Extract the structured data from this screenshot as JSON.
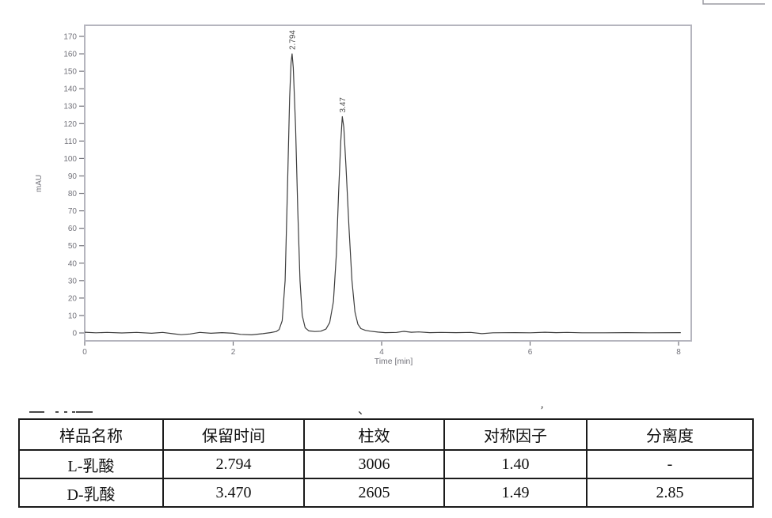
{
  "chart_data": {
    "type": "line",
    "title": "",
    "xlabel": "Time [min]",
    "ylabel": "mAU",
    "xlim": [
      0,
      8.17
    ],
    "ylim": [
      -4.5,
      176
    ],
    "x_ticks": [
      0,
      2,
      4,
      6,
      8
    ],
    "y_ticks": [
      0,
      10,
      20,
      30,
      40,
      50,
      60,
      70,
      80,
      90,
      100,
      110,
      120,
      130,
      140,
      150,
      160,
      170
    ],
    "grid": false,
    "legend": "none",
    "line_color": "#3d3d3d",
    "axis_color": "#b5b5be",
    "tick_color": "#72727a",
    "peaks": [
      {
        "label": "2.794",
        "time_min": 2.794,
        "height_mau": 160
      },
      {
        "label": "3.47",
        "time_min": 3.47,
        "height_mau": 124
      }
    ],
    "points": [
      [
        0,
        0.4
      ],
      [
        0.15,
        0.1
      ],
      [
        0.3,
        0.3
      ],
      [
        0.5,
        0
      ],
      [
        0.7,
        0.3
      ],
      [
        0.9,
        -0.2
      ],
      [
        1.05,
        0.3
      ],
      [
        1.2,
        -0.5
      ],
      [
        1.3,
        -1
      ],
      [
        1.42,
        -0.6
      ],
      [
        1.55,
        0.3
      ],
      [
        1.7,
        -0.2
      ],
      [
        1.85,
        0.2
      ],
      [
        2.0,
        -0.2
      ],
      [
        2.1,
        -0.8
      ],
      [
        2.25,
        -1.1
      ],
      [
        2.4,
        -0.4
      ],
      [
        2.5,
        0.2
      ],
      [
        2.58,
        0.8
      ],
      [
        2.62,
        2
      ],
      [
        2.66,
        7
      ],
      [
        2.7,
        30
      ],
      [
        2.73,
        80
      ],
      [
        2.76,
        135
      ],
      [
        2.78,
        155
      ],
      [
        2.794,
        160
      ],
      [
        2.81,
        152
      ],
      [
        2.84,
        118
      ],
      [
        2.87,
        70
      ],
      [
        2.9,
        30
      ],
      [
        2.93,
        10
      ],
      [
        2.97,
        3
      ],
      [
        3.02,
        1.2
      ],
      [
        3.1,
        0.8
      ],
      [
        3.18,
        1
      ],
      [
        3.25,
        2.2
      ],
      [
        3.3,
        6
      ],
      [
        3.35,
        18
      ],
      [
        3.39,
        45
      ],
      [
        3.42,
        80
      ],
      [
        3.45,
        110
      ],
      [
        3.47,
        124
      ],
      [
        3.49,
        118
      ],
      [
        3.52,
        95
      ],
      [
        3.56,
        60
      ],
      [
        3.6,
        30
      ],
      [
        3.64,
        12
      ],
      [
        3.68,
        5
      ],
      [
        3.72,
        2.5
      ],
      [
        3.78,
        1.5
      ],
      [
        3.85,
        1
      ],
      [
        3.95,
        0.5
      ],
      [
        4.05,
        0.2
      ],
      [
        4.2,
        0.3
      ],
      [
        4.3,
        0.9
      ],
      [
        4.4,
        0.4
      ],
      [
        4.5,
        0.6
      ],
      [
        4.65,
        0.2
      ],
      [
        4.8,
        0.3
      ],
      [
        5.0,
        0.2
      ],
      [
        5.2,
        0.3
      ],
      [
        5.35,
        -0.4
      ],
      [
        5.5,
        0.1
      ],
      [
        5.8,
        0.2
      ],
      [
        6.0,
        0.1
      ],
      [
        6.2,
        0.4
      ],
      [
        6.35,
        0.2
      ],
      [
        6.5,
        0.3
      ],
      [
        6.7,
        0.1
      ],
      [
        7.0,
        0.1
      ],
      [
        7.3,
        0.2
      ],
      [
        7.6,
        0.1
      ],
      [
        8.03,
        0.2
      ]
    ]
  },
  "stray_marks": {
    "pause_mark": "、",
    "comma_mark": "’"
  },
  "table": {
    "headers": [
      "样品名称",
      "保留时间",
      "柱效",
      "对称因子",
      "分离度"
    ],
    "rows": [
      [
        "L-乳酸",
        "2.794",
        "3006",
        "1.40",
        "-"
      ],
      [
        "D-乳酸",
        "3.470",
        "2605",
        "1.49",
        "2.85"
      ]
    ]
  }
}
